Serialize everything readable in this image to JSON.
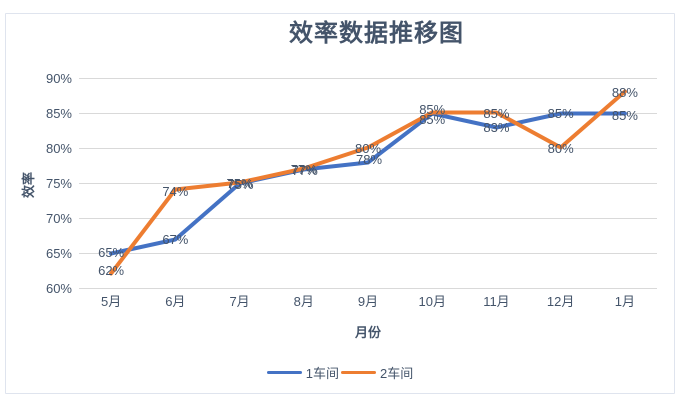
{
  "chart_data": {
    "type": "line",
    "title": "效率数据推移图",
    "xlabel": "月份",
    "ylabel": "效率",
    "categories": [
      "5月",
      "6月",
      "7月",
      "8月",
      "9月",
      "10月",
      "11月",
      "12月",
      "1月"
    ],
    "series": [
      {
        "name": "1车间",
        "color": "#4472C4",
        "values": [
          65,
          67,
          75,
          77,
          78,
          85,
          83,
          85,
          85
        ],
        "data_labels": [
          "65%",
          "67%",
          "75%",
          "77%",
          "78%",
          "85%",
          "83%",
          "85%",
          "85%"
        ],
        "label_offsets": [
          [
            0,
            -1
          ],
          [
            0,
            0
          ],
          [
            0,
            0
          ],
          [
            0,
            0
          ],
          [
            1,
            -3
          ],
          [
            0,
            -4
          ],
          [
            0,
            0
          ],
          [
            0,
            0
          ],
          [
            0,
            2
          ]
        ]
      },
      {
        "name": "2车间",
        "color": "#ED7D31",
        "values": [
          62,
          74,
          75,
          77,
          80,
          85,
          85,
          80,
          88
        ],
        "data_labels": [
          "62%",
          "74%",
          "75%",
          "77%",
          "80%",
          "85%",
          "85%",
          "80%",
          "88%"
        ],
        "label_offsets": [
          [
            0,
            -4
          ],
          [
            0,
            1
          ],
          [
            1,
            1
          ],
          [
            1,
            1
          ],
          [
            0,
            0
          ],
          [
            0,
            6
          ],
          [
            0,
            0
          ],
          [
            0,
            0
          ],
          [
            0,
            0
          ]
        ]
      }
    ],
    "ylim": [
      60,
      90
    ],
    "ytick_step": 5,
    "ytick_labels": [
      "60%",
      "65%",
      "70%",
      "75%",
      "80%",
      "85%",
      "90%"
    ],
    "grid": true,
    "legend_position": "bottom",
    "data_label_position": "center",
    "line_width": 4,
    "markers": false
  },
  "style": {
    "background": "#FFFFFF",
    "text_color": "#44546A",
    "data_label_color": "#44546A",
    "grid_color": "#D9D9D9",
    "border_color": "#DFE4EE"
  }
}
